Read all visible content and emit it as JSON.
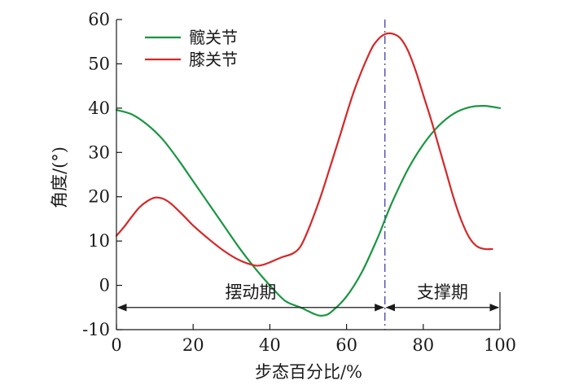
{
  "chart_data": {
    "type": "line",
    "xlabel": "步态百分比/%",
    "ylabel": "角度/(°)",
    "xlim": [
      0,
      100
    ],
    "ylim": [
      -10,
      60
    ],
    "xticks": [
      0,
      20,
      40,
      60,
      80,
      100
    ],
    "yticks": [
      -10,
      0,
      10,
      20,
      30,
      40,
      50,
      60
    ],
    "grid": false,
    "legend_position": "top-left",
    "series": [
      {
        "name": "髋关节",
        "color": "#1a9641",
        "points": [
          [
            0,
            39.6
          ],
          [
            4,
            38.6
          ],
          [
            8,
            36.3
          ],
          [
            12,
            33.0
          ],
          [
            16,
            28.5
          ],
          [
            20,
            23.5
          ],
          [
            24,
            18.5
          ],
          [
            28,
            13.5
          ],
          [
            32,
            8.5
          ],
          [
            36,
            4.0
          ],
          [
            40,
            0.0
          ],
          [
            44,
            -3.5
          ],
          [
            48,
            -5.0
          ],
          [
            52,
            -6.6
          ],
          [
            54,
            -6.8
          ],
          [
            56,
            -6.0
          ],
          [
            60,
            -2.5
          ],
          [
            64,
            3.0
          ],
          [
            68,
            10.5
          ],
          [
            70,
            14.8
          ],
          [
            72,
            19.0
          ],
          [
            76,
            26.2
          ],
          [
            80,
            31.8
          ],
          [
            84,
            36.0
          ],
          [
            88,
            38.8
          ],
          [
            92,
            40.2
          ],
          [
            96,
            40.5
          ],
          [
            100,
            40.0
          ]
        ]
      },
      {
        "name": "膝关节",
        "color": "#d62728",
        "points": [
          [
            0,
            11.2
          ],
          [
            2,
            13.2
          ],
          [
            4,
            15.5
          ],
          [
            6,
            17.6
          ],
          [
            8,
            19.0
          ],
          [
            10,
            19.8
          ],
          [
            12,
            19.6
          ],
          [
            14,
            18.6
          ],
          [
            16,
            17.0
          ],
          [
            18,
            15.3
          ],
          [
            20,
            13.5
          ],
          [
            24,
            10.5
          ],
          [
            28,
            7.8
          ],
          [
            32,
            5.7
          ],
          [
            36,
            4.5
          ],
          [
            38,
            4.6
          ],
          [
            40,
            5.2
          ],
          [
            43,
            6.3
          ],
          [
            46,
            7.2
          ],
          [
            48,
            8.8
          ],
          [
            50,
            12.5
          ],
          [
            52,
            17.0
          ],
          [
            54,
            22.0
          ],
          [
            58,
            33.0
          ],
          [
            62,
            44.0
          ],
          [
            66,
            52.5
          ],
          [
            68,
            55.3
          ],
          [
            70,
            56.7
          ],
          [
            72,
            56.8
          ],
          [
            74,
            55.8
          ],
          [
            76,
            53.0
          ],
          [
            78,
            48.5
          ],
          [
            80,
            43.0
          ],
          [
            82,
            37.5
          ],
          [
            84,
            31.5
          ],
          [
            86,
            25.5
          ],
          [
            88,
            19.5
          ],
          [
            90,
            14.5
          ],
          [
            92,
            10.8
          ],
          [
            94,
            8.8
          ],
          [
            96,
            8.2
          ],
          [
            98,
            8.2
          ]
        ]
      }
    ],
    "reference_line": {
      "x": 70,
      "style": "dash-dot",
      "color": "#4040aa"
    },
    "phases": [
      {
        "label": "摆动期",
        "from": 0,
        "to": 70,
        "y": -5
      },
      {
        "label": "支撑期",
        "from": 70,
        "to": 100,
        "y": -5
      }
    ]
  }
}
